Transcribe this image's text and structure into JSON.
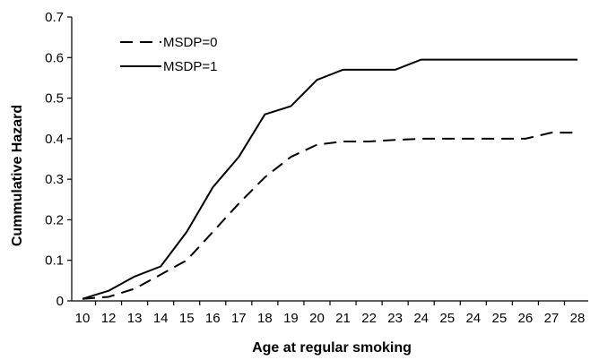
{
  "chart_data": {
    "type": "line",
    "title": "",
    "xlabel": "Age at regular smoking",
    "ylabel": "Cummulative Hazard",
    "ylim": [
      0,
      0.7
    ],
    "yticks": [
      "0",
      "0.1",
      "0.2",
      "0.3",
      "0.4",
      "0.5",
      "0.6",
      "0.7"
    ],
    "categories": [
      "10",
      "12",
      "13",
      "14",
      "15",
      "16",
      "17",
      "18",
      "19",
      "20",
      "21",
      "22",
      "23",
      "24",
      "25",
      "24",
      "25",
      "26",
      "27",
      "28"
    ],
    "grid": false,
    "legend_position": "top-left",
    "series": [
      {
        "name": "MSDP=0",
        "style": "dashed",
        "color": "#000000",
        "values": [
          0.005,
          0.01,
          0.03,
          0.065,
          0.1,
          0.17,
          0.24,
          0.305,
          0.355,
          0.385,
          0.393,
          0.393,
          0.397,
          0.4,
          0.4,
          0.4,
          0.4,
          0.4,
          0.415,
          0.415
        ]
      },
      {
        "name": "MSDP=1",
        "style": "solid",
        "color": "#000000",
        "values": [
          0.005,
          0.025,
          0.06,
          0.085,
          0.17,
          0.28,
          0.355,
          0.46,
          0.48,
          0.545,
          0.57,
          0.57,
          0.57,
          0.595,
          0.595,
          0.595,
          0.595,
          0.595,
          0.595,
          0.595
        ]
      }
    ]
  }
}
